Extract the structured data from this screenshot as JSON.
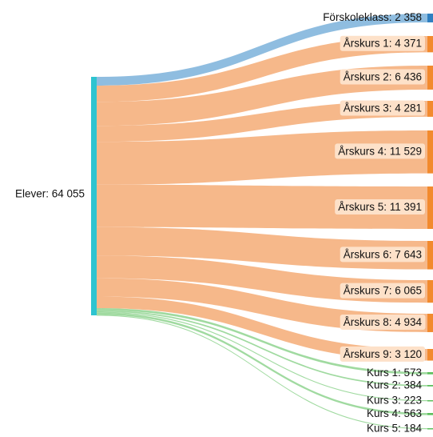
{
  "chart_data": {
    "type": "sankey",
    "source": {
      "name": "Elever",
      "value": 64055,
      "label": "Elever: 64 055",
      "color": "#2ec4d0"
    },
    "targets": [
      {
        "name": "Förskoleklass",
        "value": 2358,
        "label": "Förskoleklass: 2 358",
        "group": "preschool"
      },
      {
        "name": "Årskurs 1",
        "value": 4371,
        "label": "Årskurs 1: 4 371",
        "group": "grade"
      },
      {
        "name": "Årskurs 2",
        "value": 6436,
        "label": "Årskurs 2: 6 436",
        "group": "grade"
      },
      {
        "name": "Årskurs 3",
        "value": 4281,
        "label": "Årskurs 3: 4 281",
        "group": "grade"
      },
      {
        "name": "Årskurs 4",
        "value": 11529,
        "label": "Årskurs 4: 11 529",
        "group": "grade"
      },
      {
        "name": "Årskurs 5",
        "value": 11391,
        "label": "Årskurs 5: 11 391",
        "group": "grade"
      },
      {
        "name": "Årskurs 6",
        "value": 7643,
        "label": "Årskurs 6: 7 643",
        "group": "grade"
      },
      {
        "name": "Årskurs 7",
        "value": 6065,
        "label": "Årskurs 7: 6 065",
        "group": "grade"
      },
      {
        "name": "Årskurs 8",
        "value": 4934,
        "label": "Årskurs 8: 4 934",
        "group": "grade"
      },
      {
        "name": "Årskurs 9",
        "value": 3120,
        "label": "Årskurs 9: 3 120",
        "group": "grade"
      },
      {
        "name": "Kurs 1",
        "value": 573,
        "label": "Kurs 1: 573",
        "group": "course"
      },
      {
        "name": "Kurs 2",
        "value": 384,
        "label": "Kurs 2: 384",
        "group": "course"
      },
      {
        "name": "Kurs 3",
        "value": 223,
        "label": "Kurs 3: 223",
        "group": "course"
      },
      {
        "name": "Kurs 4",
        "value": 563,
        "label": "Kurs 4: 563",
        "group": "course"
      },
      {
        "name": "Kurs 5",
        "value": 184,
        "label": "Kurs 5: 184",
        "group": "course"
      }
    ],
    "colors": {
      "preschool_node": "#2f7fc1",
      "preschool_link": "#8fbde0",
      "grade_node": "#f28a2e",
      "grade_link": "#f6b88a",
      "course_node": "#5cbf5c",
      "course_link": "#8fd38f",
      "label_bg": "#fde1c9"
    }
  }
}
